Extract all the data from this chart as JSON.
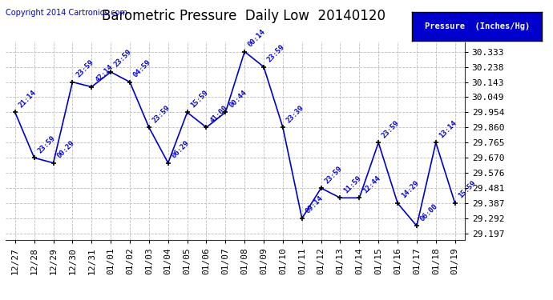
{
  "title": "Barometric Pressure  Daily Low  20140120",
  "copyright": "Copyright 2014 Cartronics.com",
  "legend_label": "Pressure  (Inches/Hg)",
  "x_labels": [
    "12/27",
    "12/28",
    "12/29",
    "12/30",
    "12/31",
    "01/01",
    "01/02",
    "01/03",
    "01/04",
    "01/05",
    "01/06",
    "01/07",
    "01/08",
    "01/09",
    "01/10",
    "01/11",
    "01/12",
    "01/13",
    "01/14",
    "01/15",
    "01/16",
    "01/17",
    "01/18",
    "01/19"
  ],
  "y_values": [
    29.954,
    29.67,
    29.638,
    30.143,
    30.113,
    30.206,
    30.143,
    29.86,
    29.638,
    29.954,
    29.86,
    29.954,
    30.333,
    30.238,
    29.86,
    29.292,
    29.481,
    29.42,
    29.42,
    29.765,
    29.387,
    29.245,
    29.765,
    29.387
  ],
  "point_labels": [
    "21:14",
    "23:59",
    "00:29",
    "23:59",
    "42:14",
    "23:59",
    "04:59",
    "23:59",
    "06:29",
    "15:59",
    "41:00",
    "00:44",
    "00:14",
    "23:59",
    "23:39",
    "09:14",
    "23:59",
    "11:59",
    "12:44",
    "23:59",
    "14:29",
    "06:00",
    "13:14",
    "15:59"
  ],
  "y_ticks": [
    29.197,
    29.292,
    29.387,
    29.481,
    29.576,
    29.67,
    29.765,
    29.86,
    29.954,
    30.049,
    30.143,
    30.238,
    30.333
  ],
  "y_min": 29.157,
  "y_max": 30.393,
  "line_color": "#0000cc",
  "marker_color": "#000000",
  "background_color": "#ffffff",
  "grid_color": "#bbbbbb",
  "title_fontsize": 12,
  "point_label_fontsize": 6.5,
  "tick_fontsize": 8,
  "copyright_fontsize": 7,
  "legend_fontsize": 7.5
}
